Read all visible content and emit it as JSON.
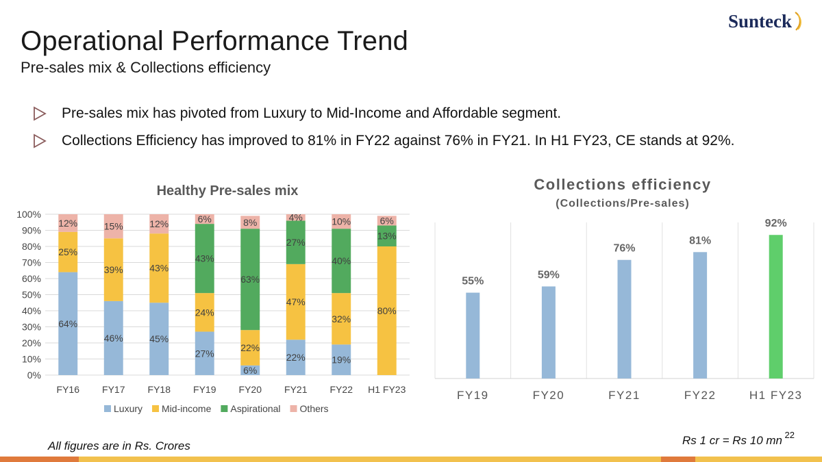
{
  "header": {
    "title": "Operational Performance Trend",
    "subtitle": "Pre-sales mix & Collections efficiency",
    "logo_text": "Sunteck"
  },
  "bullets": [
    "Pre-sales mix has pivoted from Luxury to Mid-Income and Affordable segment.",
    "Collections Efficiency has improved to 81% in FY22 against 76% in FY21. In H1 FY23, CE stands at 92%."
  ],
  "footer": {
    "left_note": "All figures are in Rs. Crores",
    "right_note": "Rs 1 cr = Rs 10 mn",
    "page_number": "22"
  },
  "colors": {
    "luxury": "#96b8d8",
    "mid_income": "#f6c242",
    "aspirational": "#52aa5e",
    "others": "#edb3a8",
    "ce_bar": "#96b8d8",
    "ce_highlight": "#5fce6b",
    "bullet_icon": "#8a5c5c"
  },
  "chart_data": [
    {
      "type": "bar",
      "stacked": true,
      "title": "Healthy Pre-sales mix",
      "categories": [
        "FY16",
        "FY17",
        "FY18",
        "FY19",
        "FY20",
        "FY21",
        "FY22",
        "H1 FY23"
      ],
      "series": [
        {
          "name": "Luxury",
          "values": [
            64,
            46,
            45,
            27,
            6,
            22,
            19,
            0
          ]
        },
        {
          "name": "Mid-income",
          "values": [
            25,
            39,
            43,
            24,
            22,
            47,
            32,
            80
          ]
        },
        {
          "name": "Aspirational",
          "values": [
            0,
            0,
            0,
            43,
            63,
            27,
            40,
            13
          ]
        },
        {
          "name": "Others",
          "values": [
            12,
            15,
            12,
            6,
            8,
            4,
            10,
            6
          ]
        }
      ],
      "y_ticks": [
        "0%",
        "10%",
        "20%",
        "30%",
        "40%",
        "50%",
        "60%",
        "70%",
        "80%",
        "90%",
        "100%"
      ],
      "ylim": [
        0,
        100
      ],
      "grid": true,
      "legend": "bottom"
    },
    {
      "type": "bar",
      "title": "Collections efficiency",
      "subtitle": "(Collections/Pre-sales)",
      "categories": [
        "FY19",
        "FY20",
        "FY21",
        "FY22",
        "H1 FY23"
      ],
      "values": [
        55,
        59,
        76,
        81,
        92
      ],
      "labels": [
        "55%",
        "59%",
        "76%",
        "81%",
        "92%"
      ],
      "ylim": [
        0,
        100
      ],
      "grid": "vertical",
      "legend": "none"
    }
  ]
}
